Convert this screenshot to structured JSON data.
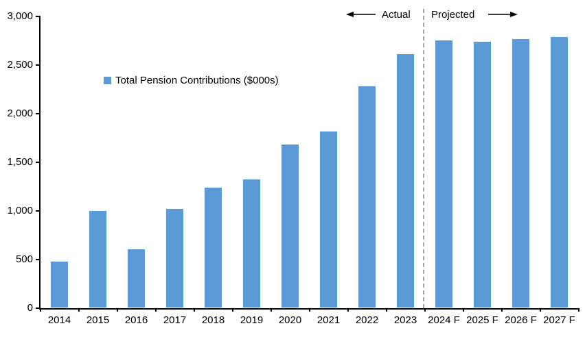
{
  "chart_data": {
    "type": "bar",
    "title": "",
    "legend": "Total Pension Contributions ($000s)",
    "categories": [
      "2014",
      "2015",
      "2016",
      "2017",
      "2018",
      "2019",
      "2020",
      "2021",
      "2022",
      "2023",
      "2024 F",
      "2025 F",
      "2026 F",
      "2027 F"
    ],
    "values": [
      475,
      995,
      605,
      1020,
      1240,
      1320,
      1680,
      1815,
      2280,
      2610,
      2750,
      2740,
      2765,
      2790
    ],
    "xlabel": "",
    "ylabel": "",
    "ylim": [
      0,
      3000
    ],
    "ytick_values": [
      0,
      500,
      1000,
      1500,
      2000,
      2500,
      3000
    ],
    "ytick_labels": [
      "0",
      "500",
      "1,000",
      "1,500",
      "2,000",
      "2,500",
      "3,000"
    ],
    "grid": false,
    "legend_position": "inside-upper-left",
    "bar_color": "#5B9BD5",
    "divider_color": "#A6A6A6",
    "annotations": {
      "actual_label": "Actual",
      "projected_label": "Projected",
      "divider_between": [
        "2023",
        "2024 F"
      ]
    }
  }
}
